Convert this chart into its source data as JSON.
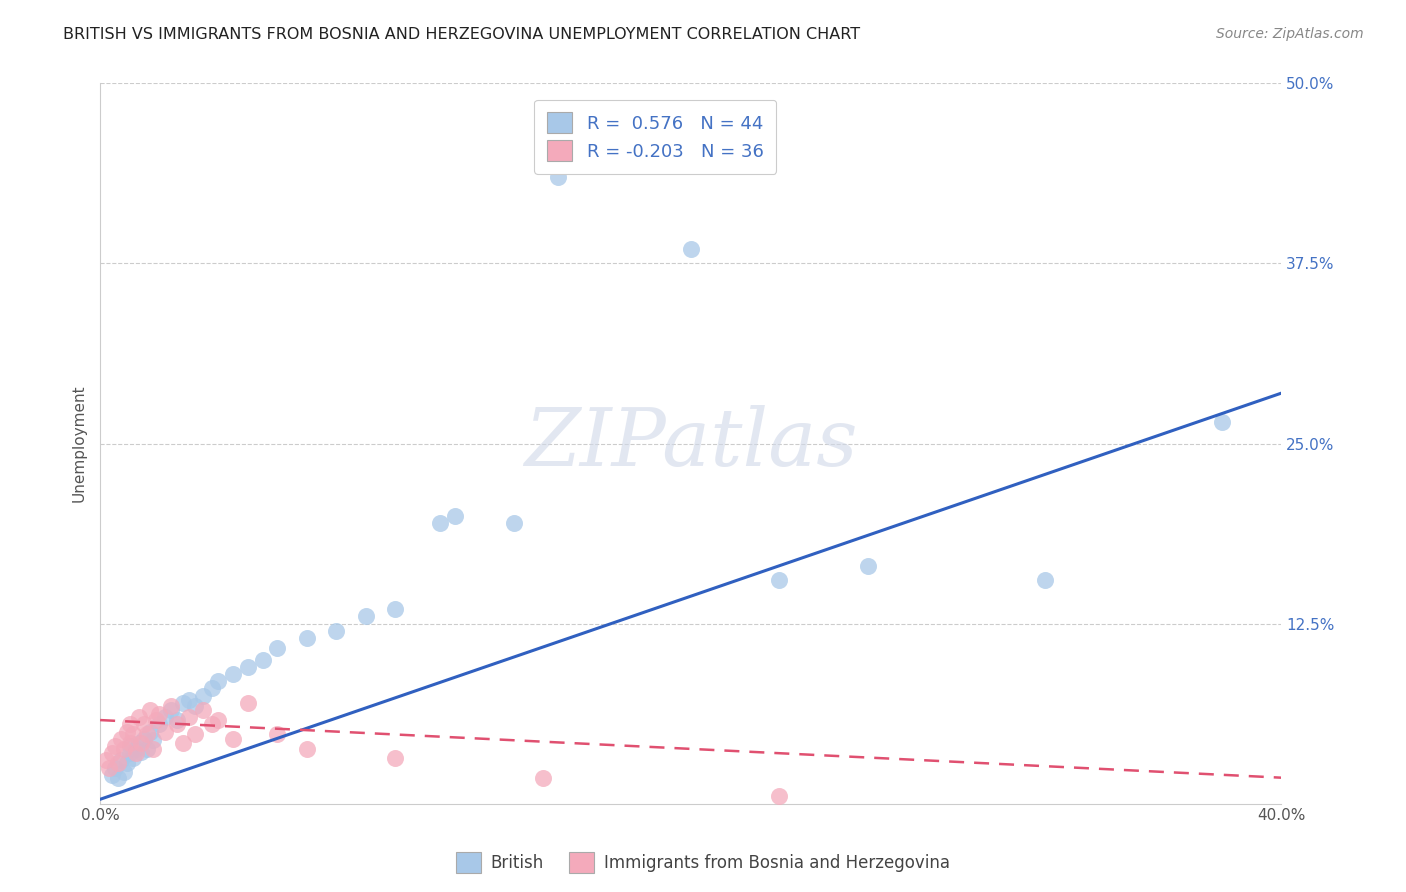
{
  "title": "BRITISH VS IMMIGRANTS FROM BOSNIA AND HERZEGOVINA UNEMPLOYMENT CORRELATION CHART",
  "source": "Source: ZipAtlas.com",
  "ylabel": "Unemployment",
  "xlim": [
    0.0,
    0.4
  ],
  "ylim": [
    0.0,
    0.5
  ],
  "xticks": [
    0.0,
    0.1,
    0.2,
    0.3,
    0.4
  ],
  "xticklabels": [
    "0.0%",
    "",
    "",
    "",
    "40.0%"
  ],
  "yticks": [
    0.0,
    0.125,
    0.25,
    0.375,
    0.5
  ],
  "yticklabels": [
    "",
    "12.5%",
    "25.0%",
    "37.5%",
    "50.0%"
  ],
  "legend_labels": [
    "British",
    "Immigrants from Bosnia and Herzegovina"
  ],
  "blue_color": "#a8c8e8",
  "pink_color": "#f4aabb",
  "blue_line_color": "#3060c0",
  "pink_line_color": "#e05070",
  "blue_R": 0.576,
  "blue_N": 44,
  "pink_R": -0.203,
  "pink_N": 36,
  "blue_scatter_x": [
    0.004,
    0.005,
    0.006,
    0.007,
    0.008,
    0.009,
    0.01,
    0.01,
    0.011,
    0.012,
    0.013,
    0.014,
    0.015,
    0.016,
    0.017,
    0.018,
    0.02,
    0.022,
    0.024,
    0.026,
    0.028,
    0.03,
    0.032,
    0.035,
    0.038,
    0.04,
    0.045,
    0.05,
    0.055,
    0.06,
    0.07,
    0.08,
    0.09,
    0.1,
    0.115,
    0.12,
    0.14,
    0.15,
    0.155,
    0.2,
    0.23,
    0.26,
    0.32,
    0.38
  ],
  "blue_scatter_y": [
    0.02,
    0.025,
    0.018,
    0.03,
    0.022,
    0.028,
    0.035,
    0.04,
    0.032,
    0.038,
    0.042,
    0.036,
    0.045,
    0.038,
    0.05,
    0.044,
    0.055,
    0.06,
    0.065,
    0.058,
    0.07,
    0.072,
    0.068,
    0.075,
    0.08,
    0.085,
    0.09,
    0.095,
    0.1,
    0.108,
    0.115,
    0.12,
    0.13,
    0.135,
    0.195,
    0.2,
    0.195,
    0.47,
    0.435,
    0.385,
    0.155,
    0.165,
    0.155,
    0.265
  ],
  "pink_scatter_x": [
    0.002,
    0.003,
    0.004,
    0.005,
    0.006,
    0.007,
    0.008,
    0.009,
    0.01,
    0.01,
    0.011,
    0.012,
    0.013,
    0.014,
    0.015,
    0.016,
    0.017,
    0.018,
    0.019,
    0.02,
    0.022,
    0.024,
    0.026,
    0.028,
    0.03,
    0.032,
    0.035,
    0.038,
    0.04,
    0.045,
    0.05,
    0.06,
    0.07,
    0.1,
    0.15,
    0.23
  ],
  "pink_scatter_y": [
    0.03,
    0.025,
    0.035,
    0.04,
    0.028,
    0.045,
    0.038,
    0.05,
    0.042,
    0.055,
    0.048,
    0.035,
    0.06,
    0.042,
    0.055,
    0.048,
    0.065,
    0.038,
    0.058,
    0.062,
    0.05,
    0.068,
    0.055,
    0.042,
    0.06,
    0.048,
    0.065,
    0.055,
    0.058,
    0.045,
    0.07,
    0.048,
    0.038,
    0.032,
    0.018,
    0.005
  ],
  "blue_line_x0": 0.0,
  "blue_line_y0": 0.003,
  "blue_line_x1": 0.4,
  "blue_line_y1": 0.285,
  "pink_line_x0": 0.0,
  "pink_line_y0": 0.058,
  "pink_line_x1": 0.4,
  "pink_line_y1": 0.018
}
